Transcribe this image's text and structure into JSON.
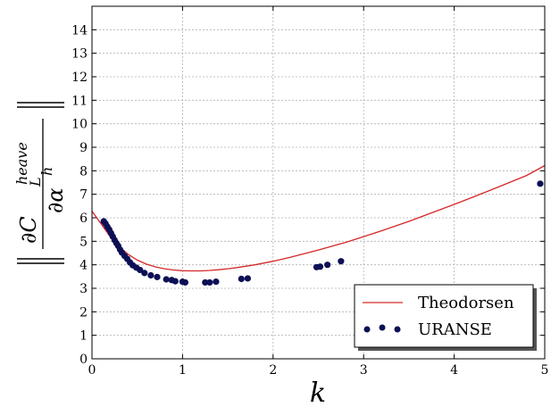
{
  "chart_data": {
    "type": "line",
    "xlabel": "k",
    "ylabel": "||∂C_L^heave / ∂α^h||",
    "ylabel_parts": {
      "numerator": "∂C",
      "sub": "L",
      "sup": "heave",
      "denominator": "∂α",
      "den_sup": "h"
    },
    "xlim": [
      0,
      5
    ],
    "ylim": [
      0,
      15
    ],
    "x_ticks": [
      "0",
      "1",
      "2",
      "3",
      "4",
      "5"
    ],
    "y_ticks": [
      "0",
      "1",
      "2",
      "3",
      "4",
      "5",
      "6",
      "7",
      "8",
      "9",
      "10",
      "11",
      "12",
      "13",
      "14"
    ],
    "grid": true,
    "legend_position": "bottom-right",
    "legend_entries": [
      "Theodorsen",
      "URANSE"
    ],
    "colors": {
      "theodorsen": "#d62728",
      "uranse": "#0d0f55"
    },
    "series": [
      {
        "name": "Theodorsen",
        "style": "line",
        "x": [
          0,
          0.1,
          0.2,
          0.3,
          0.4,
          0.5,
          0.6,
          0.7,
          0.8,
          0.9,
          1.0,
          1.1,
          1.2,
          1.3,
          1.4,
          1.5,
          1.6,
          1.8,
          2.0,
          2.2,
          2.5,
          2.8,
          3.0,
          3.2,
          3.5,
          3.8,
          4.0,
          4.2,
          4.5,
          4.8,
          5.0
        ],
        "y": [
          6.28,
          5.75,
          5.2,
          4.78,
          4.44,
          4.2,
          4.03,
          3.91,
          3.83,
          3.78,
          3.75,
          3.74,
          3.74,
          3.76,
          3.79,
          3.83,
          3.88,
          4.0,
          4.15,
          4.33,
          4.63,
          4.95,
          5.2,
          5.45,
          5.85,
          6.28,
          6.57,
          6.87,
          7.33,
          7.8,
          8.22
        ]
      },
      {
        "name": "URANSE",
        "style": "scatter",
        "x": [
          0.13,
          0.15,
          0.17,
          0.19,
          0.21,
          0.23,
          0.25,
          0.27,
          0.29,
          0.31,
          0.33,
          0.36,
          0.39,
          0.42,
          0.45,
          0.49,
          0.53,
          0.58,
          0.65,
          0.72,
          0.82,
          0.88,
          0.92,
          1.0,
          1.03,
          1.25,
          1.3,
          1.37,
          1.65,
          1.72,
          2.48,
          2.52,
          2.6,
          2.75,
          4.95
        ],
        "y": [
          5.85,
          5.75,
          5.62,
          5.5,
          5.35,
          5.2,
          5.05,
          4.92,
          4.8,
          4.65,
          4.52,
          4.38,
          4.25,
          4.1,
          3.98,
          3.88,
          3.78,
          3.65,
          3.55,
          3.48,
          3.38,
          3.35,
          3.3,
          3.28,
          3.25,
          3.25,
          3.25,
          3.28,
          3.4,
          3.42,
          3.9,
          3.92,
          4.0,
          4.15,
          7.45
        ]
      }
    ]
  }
}
